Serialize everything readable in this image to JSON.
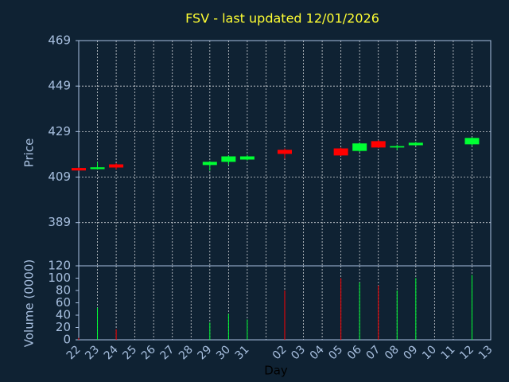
{
  "chart_data": {
    "type": "candlestick",
    "title": "FSV - last updated 12/01/2026",
    "y_label": "Price",
    "x_label": "Day",
    "categories": [
      "22",
      "23",
      "24",
      "25",
      "26",
      "27",
      "28",
      "29",
      "30",
      "31",
      null,
      "02",
      "03",
      "04",
      "05",
      "06",
      "07",
      "08",
      "09",
      "10",
      "11",
      "12",
      "13"
    ],
    "open": [
      413.0,
      412.5,
      414.6,
      null,
      null,
      null,
      null,
      414.3,
      415.7,
      416.7,
      null,
      421.0,
      null,
      null,
      421.6,
      420.5,
      424.8,
      422.0,
      423.0,
      null,
      null,
      423.4,
      null
    ],
    "high": [
      413.2,
      415.6,
      415.1,
      null,
      null,
      null,
      null,
      416.0,
      418.5,
      418.8,
      null,
      421.6,
      null,
      null,
      422.0,
      424.1,
      425.2,
      423.3,
      424.5,
      null,
      null,
      426.5,
      null
    ],
    "low": [
      411.8,
      412.3,
      412.4,
      null,
      null,
      null,
      null,
      411.8,
      414.3,
      416.3,
      null,
      417.1,
      null,
      null,
      418.3,
      420.0,
      421.8,
      420.9,
      422.8,
      null,
      null,
      422.8,
      null
    ],
    "close": [
      411.9,
      413.3,
      413.2,
      null,
      null,
      null,
      null,
      415.7,
      418.1,
      418.1,
      null,
      419.2,
      null,
      null,
      418.5,
      423.8,
      422.0,
      422.6,
      424.1,
      null,
      null,
      426.2,
      null
    ],
    "up_color": "#00ff33",
    "down_color": "#ff0000",
    "ylim": [
      370,
      469
    ],
    "yticks": [
      389,
      409,
      429,
      449,
      469
    ],
    "grid": true,
    "volume": {
      "type": "bar",
      "y_label": "Volume (0000)",
      "values": [
        3,
        52,
        17,
        null,
        null,
        null,
        null,
        28,
        42,
        33,
        null,
        80,
        null,
        null,
        100,
        93,
        88,
        80,
        100,
        null,
        null,
        105,
        null
      ],
      "ylim": [
        0,
        120
      ],
      "yticks": [
        0,
        20,
        40,
        60,
        80,
        100,
        120
      ]
    }
  }
}
